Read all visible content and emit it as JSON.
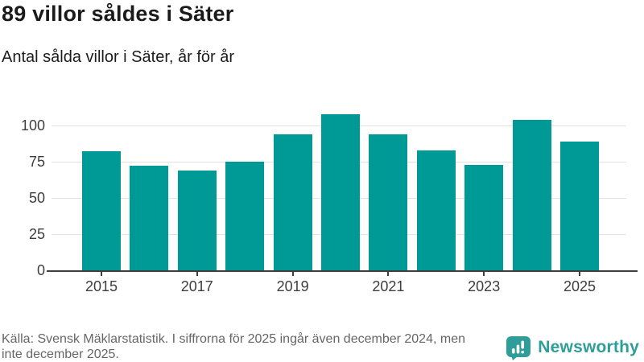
{
  "chart_data": {
    "type": "bar",
    "title": "89 villor såldes i Säter",
    "subtitle": "Antal sålda villor i Säter, år för år",
    "categories": [
      2015,
      2016,
      2017,
      2018,
      2019,
      2020,
      2021,
      2022,
      2023,
      2024,
      2025
    ],
    "values": [
      82,
      72,
      69,
      75,
      94,
      108,
      94,
      83,
      73,
      104,
      89
    ],
    "xlabel": "",
    "ylabel": "",
    "yticks": [
      0,
      25,
      50,
      75,
      100
    ],
    "xtick_labels": [
      "2015",
      "2017",
      "2019",
      "2021",
      "2023",
      "2025"
    ],
    "ylim": [
      0,
      110
    ],
    "grid": "horizontal",
    "legend": "none",
    "bar_color": "#009a96"
  },
  "footer": {
    "line1": "Källa: Svensk Mäklarstatistik. I siffrorna för 2025 ingår även december 2024, men",
    "line2": "inte december 2025."
  },
  "logo": {
    "text": "Newsworthy",
    "icon": "newsworthy-speech-bubble-bars-icon",
    "color": "#2f9e99"
  },
  "colors": {
    "bar": "#009a96",
    "grid": "#e2e2e2",
    "axis": "#3f3f3f",
    "heading": "#1b1b1b",
    "muted": "#666666"
  }
}
